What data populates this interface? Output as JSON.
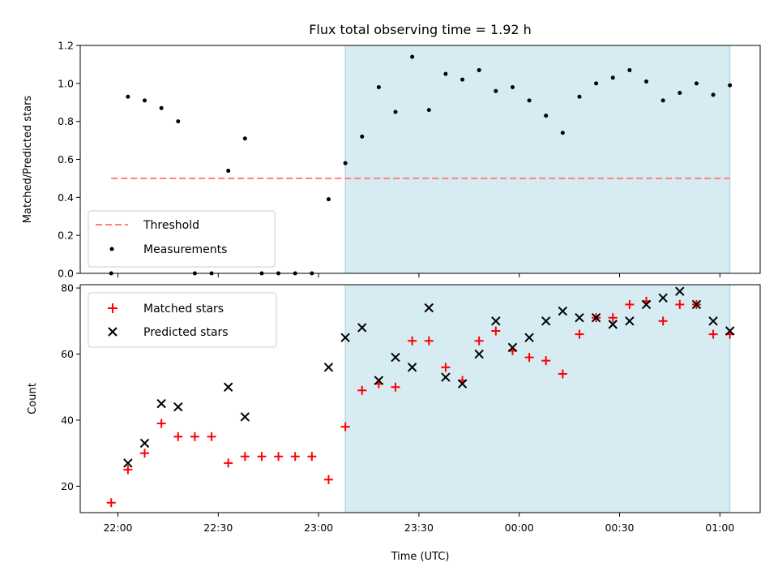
{
  "chart_data": [
    {
      "type": "scatter",
      "title": "Flux total observing time = 1.92 h",
      "xlabel": "",
      "ylabel": "Matched/Predicted stars",
      "ylim": [
        0,
        1.2
      ],
      "yticks": [
        "0.0",
        "0.2",
        "0.4",
        "0.6",
        "0.8",
        "1.0",
        "1.2"
      ],
      "shaded_interval": [
        "23:08",
        "01:03"
      ],
      "threshold": {
        "name": "Threshold",
        "value": 0.5,
        "x_range": [
          "21:58",
          "01:03"
        ],
        "color": "#ff7f7f"
      },
      "legend_position": "lower-left",
      "series": [
        {
          "name": "Measurements",
          "color": "#000000",
          "x": [
            "21:58",
            "22:03",
            "22:08",
            "22:13",
            "22:18",
            "22:23",
            "22:28",
            "22:33",
            "22:38",
            "22:43",
            "22:48",
            "22:53",
            "22:58",
            "23:03",
            "23:08",
            "23:13",
            "23:18",
            "23:23",
            "23:28",
            "23:33",
            "23:38",
            "23:43",
            "23:48",
            "23:53",
            "23:58",
            "00:03",
            "00:08",
            "00:13",
            "00:18",
            "00:23",
            "00:28",
            "00:33",
            "00:38",
            "00:43",
            "00:48",
            "00:53",
            "00:58",
            "01:03"
          ],
          "values": [
            0.0,
            0.93,
            0.91,
            0.87,
            0.8,
            0.0,
            0.0,
            0.54,
            0.71,
            0.0,
            0.0,
            0.0,
            0.0,
            0.39,
            0.58,
            0.72,
            0.98,
            0.85,
            1.14,
            0.86,
            1.05,
            1.02,
            1.07,
            0.96,
            0.98,
            0.91,
            0.83,
            0.74,
            0.93,
            1.0,
            1.03,
            1.07,
            1.01,
            0.91,
            0.95,
            1.0,
            0.94,
            0.99
          ]
        }
      ]
    },
    {
      "type": "scatter",
      "xlabel": "Time (UTC)",
      "ylabel": "Count",
      "ylim": [
        12,
        81
      ],
      "yticks": [
        "20",
        "40",
        "60",
        "80"
      ],
      "xticks": [
        "22:00",
        "22:30",
        "23:00",
        "23:30",
        "00:00",
        "00:30",
        "01:00"
      ],
      "shaded_interval": [
        "23:08",
        "01:03"
      ],
      "legend_position": "upper-left",
      "series": [
        {
          "name": "Matched stars",
          "color": "#ff0000",
          "marker": "plus",
          "x": [
            "21:58",
            "22:03",
            "22:08",
            "22:13",
            "22:18",
            "22:23",
            "22:28",
            "22:33",
            "22:38",
            "22:43",
            "22:48",
            "22:53",
            "22:58",
            "23:03",
            "23:08",
            "23:13",
            "23:18",
            "23:23",
            "23:28",
            "23:33",
            "23:38",
            "23:43",
            "23:48",
            "23:53",
            "23:58",
            "00:03",
            "00:08",
            "00:13",
            "00:18",
            "00:23",
            "00:28",
            "00:33",
            "00:38",
            "00:43",
            "00:48",
            "00:53",
            "00:58",
            "01:03"
          ],
          "values": [
            15,
            25,
            30,
            39,
            35,
            35,
            35,
            27,
            29,
            29,
            29,
            29,
            29,
            22,
            38,
            49,
            51,
            50,
            64,
            64,
            56,
            52,
            64,
            67,
            61,
            59,
            58,
            54,
            66,
            71,
            71,
            75,
            76,
            70,
            75,
            75,
            66,
            66
          ]
        },
        {
          "name": "Predicted stars",
          "color": "#000000",
          "marker": "x",
          "x": [
            "22:03",
            "22:08",
            "22:13",
            "22:18",
            "22:33",
            "22:38",
            "23:03",
            "23:08",
            "23:13",
            "23:18",
            "23:23",
            "23:28",
            "23:33",
            "23:38",
            "23:43",
            "23:48",
            "23:53",
            "23:58",
            "00:03",
            "00:08",
            "00:13",
            "00:18",
            "00:23",
            "00:28",
            "00:33",
            "00:38",
            "00:43",
            "00:48",
            "00:53",
            "00:58",
            "01:03"
          ],
          "values": [
            27,
            33,
            45,
            44,
            50,
            41,
            56,
            65,
            68,
            52,
            59,
            56,
            74,
            53,
            51,
            60,
            70,
            62,
            65,
            70,
            73,
            71,
            71,
            69,
            70,
            75,
            77,
            79,
            75,
            70,
            67
          ]
        }
      ]
    }
  ]
}
